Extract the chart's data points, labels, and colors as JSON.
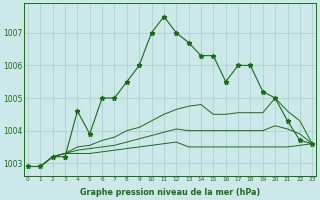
{
  "line1": [
    1002.9,
    1002.9,
    1003.2,
    1003.2,
    1004.6,
    1003.9,
    1005.0,
    1005.0,
    1005.5,
    1006.0,
    1007.0,
    1007.5,
    1007.0,
    1006.7,
    1006.3,
    1006.3,
    1005.5,
    1006.0,
    1006.0,
    1005.2,
    1005.0,
    1004.3,
    1003.7,
    1003.6
  ],
  "line2": [
    1002.9,
    1002.9,
    1003.2,
    1003.3,
    1003.3,
    1003.3,
    1003.35,
    1003.4,
    1003.45,
    1003.5,
    1003.55,
    1003.6,
    1003.65,
    1003.5,
    1003.5,
    1003.5,
    1003.5,
    1003.5,
    1003.5,
    1003.5,
    1003.5,
    1003.5,
    1003.55,
    1003.6
  ],
  "line3": [
    1002.9,
    1002.9,
    1003.2,
    1003.3,
    1003.4,
    1003.45,
    1003.5,
    1003.55,
    1003.65,
    1003.75,
    1003.85,
    1003.95,
    1004.05,
    1004.0,
    1004.0,
    1004.0,
    1004.0,
    1004.0,
    1004.0,
    1004.0,
    1004.15,
    1004.05,
    1003.9,
    1003.6
  ],
  "line4": [
    1002.9,
    1002.9,
    1003.2,
    1003.3,
    1003.5,
    1003.55,
    1003.7,
    1003.8,
    1004.0,
    1004.1,
    1004.3,
    1004.5,
    1004.65,
    1004.75,
    1004.8,
    1004.5,
    1004.5,
    1004.55,
    1004.55,
    1004.55,
    1005.0,
    1004.6,
    1004.3,
    1003.6
  ],
  "x": [
    0,
    1,
    2,
    3,
    4,
    5,
    6,
    7,
    8,
    9,
    10,
    11,
    12,
    13,
    14,
    15,
    16,
    17,
    18,
    19,
    20,
    21,
    22,
    23
  ],
  "yticks": [
    1003,
    1004,
    1005,
    1006,
    1007
  ],
  "xtick_labels": [
    "0",
    "1",
    "2",
    "3",
    "4",
    "5",
    "6",
    "7",
    "8",
    "9",
    "10",
    "11",
    "12",
    "13",
    "14",
    "15",
    "16",
    "17",
    "18",
    "19",
    "20",
    "21",
    "22",
    "23"
  ],
  "xlabel": "Graphe pression niveau de la mer (hPa)",
  "line_color": "#1a6b1a",
  "bg_color": "#cce8e8",
  "grid_color": "#aacccc",
  "ylim": [
    1002.6,
    1007.9
  ],
  "xlim": [
    -0.3,
    23.3
  ]
}
